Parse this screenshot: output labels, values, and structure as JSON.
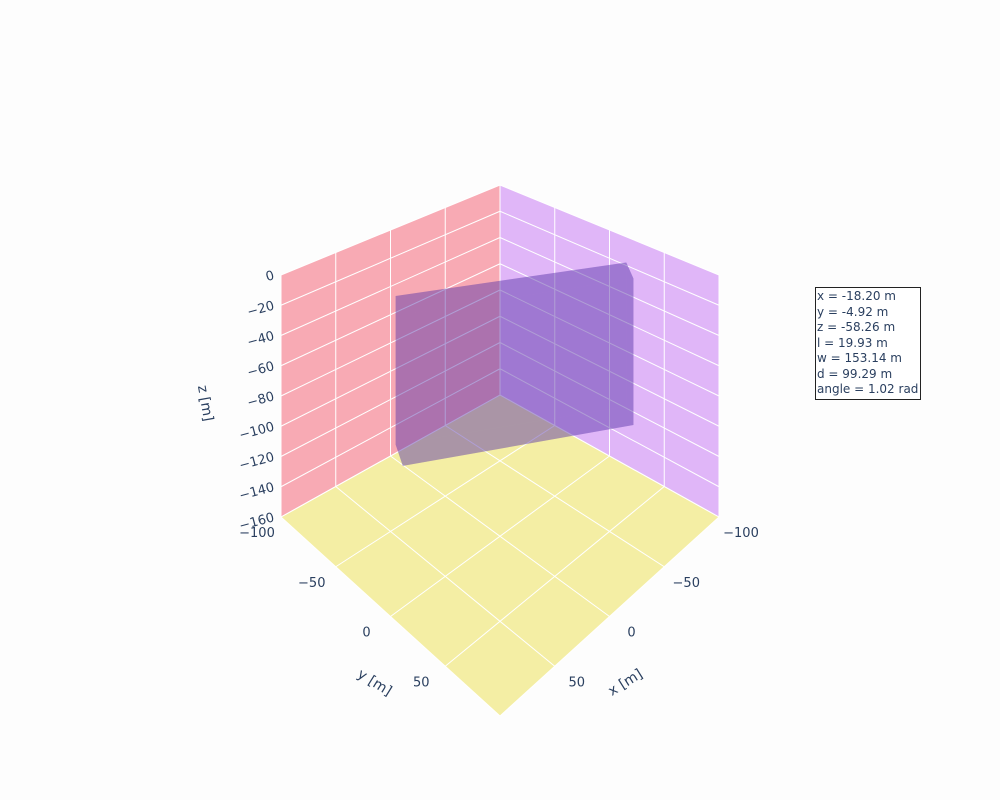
{
  "chart_data": {
    "type": "mesh3d",
    "axes": {
      "x": {
        "title": "x [m]",
        "range": [
          -100,
          100
        ],
        "ticks": [
          -100,
          -50,
          0,
          50
        ],
        "tick_labels": [
          "−100",
          "−50",
          "0",
          "50"
        ]
      },
      "y": {
        "title": "y [m]",
        "range": [
          -100,
          100
        ],
        "ticks": [
          -100,
          -50,
          0,
          50
        ],
        "tick_labels": [
          "−100",
          "−50",
          "0",
          "50"
        ]
      },
      "z": {
        "title": "z [m]",
        "range": [
          -160,
          0
        ],
        "ticks": [
          0,
          -20,
          -40,
          -60,
          -80,
          -100,
          -120,
          -140,
          -160
        ],
        "tick_labels": [
          "0",
          "−20",
          "−40",
          "−60",
          "−80",
          "−100",
          "−120",
          "−140",
          "−160"
        ]
      }
    },
    "walls": {
      "yz_plane_color": "#f8aab4",
      "xz_plane_color": "#e0b6f8",
      "xy_floor_color": "#f4eea4",
      "grid_color": "#ffffff"
    },
    "body": {
      "color": "#5a36a8",
      "opacity": 0.82,
      "center": {
        "x": -18.2,
        "y": -4.92,
        "z": -58.26
      },
      "l": 19.93,
      "w": 153.14,
      "d": 99.29,
      "angle": 1.02
    },
    "annotation_lines": [
      "x = -18.20 m",
      "y = -4.92 m",
      "z = -58.26 m",
      "l = 19.93 m",
      "w = 153.14 m",
      "d = 99.29 m",
      "angle = 1.02 rad"
    ]
  }
}
